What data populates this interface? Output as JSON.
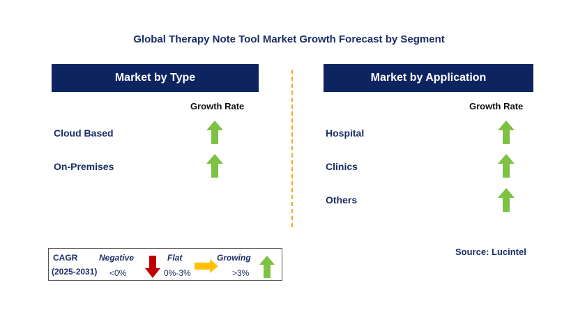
{
  "title": "Global Therapy Note Tool Market Growth Forecast by Segment",
  "left_panel": {
    "header": "Market by Type",
    "growth_header": "Growth Rate",
    "rows": [
      {
        "label": "Cloud Based",
        "trend": "growing"
      },
      {
        "label": "On-Premises",
        "trend": "growing"
      }
    ]
  },
  "right_panel": {
    "header": "Market by Application",
    "growth_header": "Growth Rate",
    "rows": [
      {
        "label": "Hospital",
        "trend": "growing"
      },
      {
        "label": "Clinics",
        "trend": "growing"
      },
      {
        "label": "Others",
        "trend": "growing"
      }
    ]
  },
  "legend": {
    "cagr_label": "CAGR",
    "period": "(2025-2031)",
    "negative_label": "Negative",
    "negative_range": "<0%",
    "flat_label": "Flat",
    "flat_range": "0%-3%",
    "growing_label": "Growing",
    "growing_range": ">3%"
  },
  "source": "Source: Lucintel",
  "colors": {
    "header_bg": "#0e2461",
    "growing": "#7dc242",
    "negative": "#c00000",
    "flat": "#ffc000",
    "divider": "#f0a81e"
  },
  "icons": {
    "growing": "up-arrow-icon",
    "negative": "down-arrow-icon",
    "flat": "right-arrow-icon"
  }
}
